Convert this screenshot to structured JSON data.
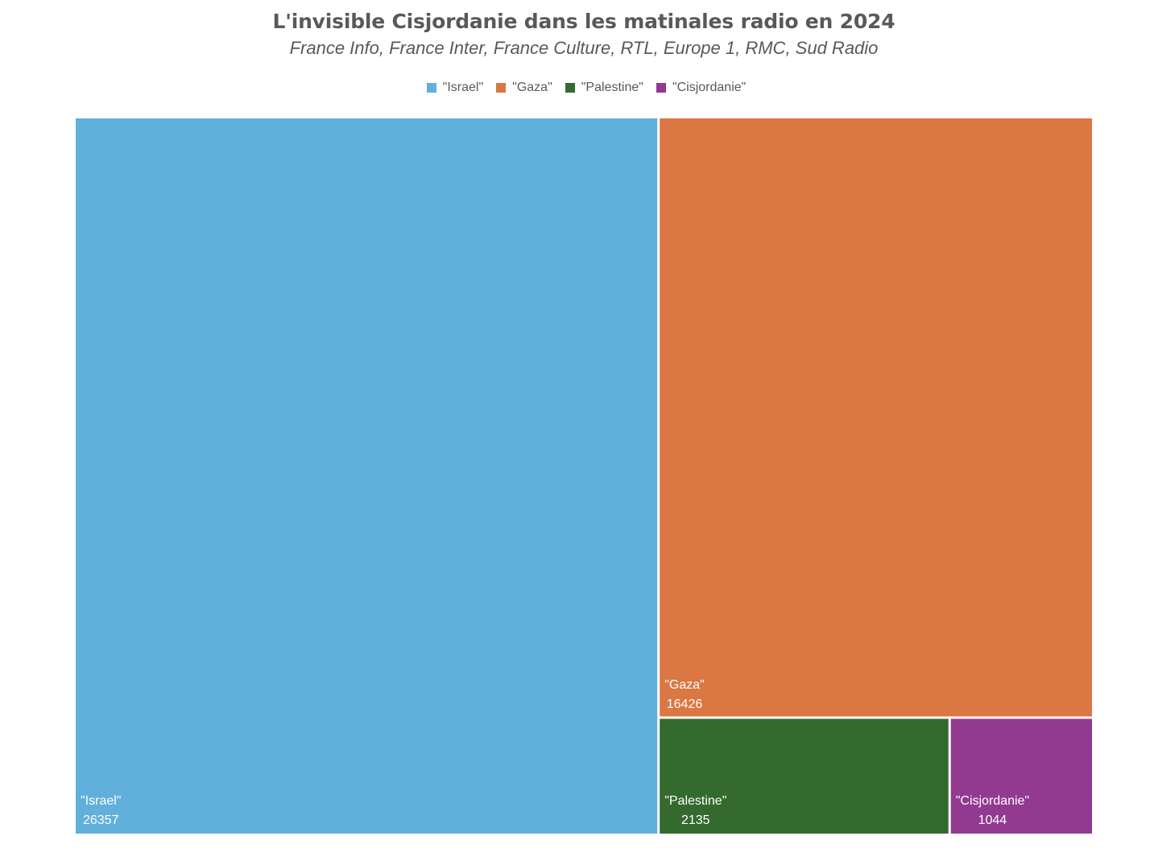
{
  "title": "L'invisible Cisjordanie dans les matinales radio en 2024",
  "subtitle": "France Info, France Inter, France Culture, RTL, Europe 1, RMC, Sud Radio",
  "chart_data": {
    "type": "treemap",
    "title": "L'invisible Cisjordanie dans les matinales radio en 2024",
    "subtitle": "France Info, France Inter, France Culture, RTL, Europe 1, RMC, Sud Radio",
    "legend_position": "top",
    "categories": [
      "\"Israel\"",
      "\"Gaza\"",
      "\"Palestine\"",
      "\"Cisjordanie\""
    ],
    "values": [
      26357,
      16426,
      2135,
      1044
    ],
    "colors": [
      "#61afdb",
      "#da7743",
      "#346a2e",
      "#913a8f"
    ]
  }
}
